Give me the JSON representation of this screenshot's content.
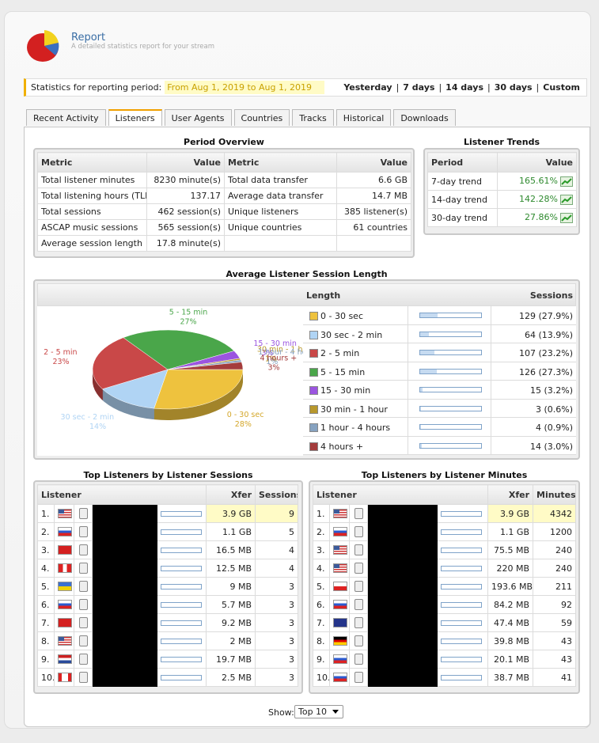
{
  "header": {
    "title": "Report",
    "subtitle": "A detailed statistics report for your stream"
  },
  "period_bar": {
    "label": "Statistics for reporting period:",
    "range": "From Aug 1, 2019 to Aug 1, 2019",
    "links": [
      "Yesterday",
      "7 days",
      "14 days",
      "30 days",
      "Custom"
    ],
    "separator": "|"
  },
  "tabs": [
    "Recent Activity",
    "Listeners",
    "User Agents",
    "Countries",
    "Tracks",
    "Historical",
    "Downloads"
  ],
  "active_tab": "Listeners",
  "period_overview": {
    "title": "Period Overview",
    "columns": [
      "Metric",
      "Value",
      "Metric",
      "Value"
    ],
    "rows": [
      [
        "Total listener minutes",
        "8230 minute(s)",
        "Total data transfer",
        "6.6 GB"
      ],
      [
        "Total listening hours (TLH)",
        "137.17",
        "Average data transfer",
        "14.7 MB"
      ],
      [
        "Total sessions",
        "462 session(s)",
        "Unique listeners",
        "385 listener(s)"
      ],
      [
        "ASCAP music sessions",
        "565 session(s)",
        "Unique countries",
        "61 countries"
      ],
      [
        "Average session length",
        "17.8 minute(s)"
      ]
    ]
  },
  "listener_trends": {
    "title": "Listener Trends",
    "columns": [
      "Period",
      "Value"
    ],
    "rows": [
      [
        "7-day trend",
        "165.61%"
      ],
      [
        "14-day trend",
        "142.28%"
      ],
      [
        "30-day trend",
        "27.86%"
      ]
    ]
  },
  "session_length": {
    "title": "Average Listener Session Length",
    "columns": [
      "Length",
      "Sessions"
    ],
    "type": "pie",
    "categories": [
      "0 - 30 sec",
      "30 sec - 2 min",
      "2 - 5 min",
      "5 - 15 min",
      "15 - 30 min",
      "30 min - 1 hour",
      "1 hour - 4 hours",
      "4 hours +"
    ],
    "colors": [
      "#eec23e",
      "#b0d4f4",
      "#c94848",
      "#4aa64a",
      "#9b55e0",
      "#b8982c",
      "#86a2c0",
      "#a43c3c"
    ],
    "values": [
      129,
      64,
      107,
      126,
      15,
      3,
      4,
      14
    ],
    "value_labels": [
      "129 (27.9%)",
      "64 (13.9%)",
      "107 (23.2%)",
      "126 (27.3%)",
      "15 (3.2%)",
      "3 (0.6%)",
      "4 (0.9%)",
      "14 (3.0%)"
    ],
    "slice_labels": [
      "28%",
      "14%",
      "23%",
      "27%",
      "3%",
      "1%",
      "1%",
      "3%"
    ]
  },
  "top_sessions": {
    "title": "Top Listeners by Listener Sessions",
    "columns": [
      "Listener",
      "Xfer",
      "Sessions"
    ],
    "rows": [
      {
        "rank": "1.",
        "xfer": "3.9 GB",
        "value": 9
      },
      {
        "rank": "2.",
        "xfer": "1.1 GB",
        "value": 5
      },
      {
        "rank": "3.",
        "xfer": "16.5 MB",
        "value": 4
      },
      {
        "rank": "4.",
        "xfer": "12.5 MB",
        "value": 4
      },
      {
        "rank": "5.",
        "xfer": "9 MB",
        "value": 3
      },
      {
        "rank": "6.",
        "xfer": "5.7 MB",
        "value": 3
      },
      {
        "rank": "7.",
        "xfer": "9.2 MB",
        "value": 3
      },
      {
        "rank": "8.",
        "xfer": "2 MB",
        "value": 3
      },
      {
        "rank": "9.",
        "xfer": "19.7 MB",
        "value": 3
      },
      {
        "rank": "10.",
        "xfer": "2.5 MB",
        "value": 3
      }
    ]
  },
  "top_minutes": {
    "title": "Top Listeners by Listener Minutes",
    "columns": [
      "Listener",
      "Xfer",
      "Minutes"
    ],
    "rows": [
      {
        "rank": "1.",
        "xfer": "3.9 GB",
        "value": 4342
      },
      {
        "rank": "2.",
        "xfer": "1.1 GB",
        "value": 1200
      },
      {
        "rank": "3.",
        "xfer": "75.5 MB",
        "value": 240
      },
      {
        "rank": "4.",
        "xfer": "220 MB",
        "value": 240
      },
      {
        "rank": "5.",
        "xfer": "193.6 MB",
        "value": 211
      },
      {
        "rank": "6.",
        "xfer": "84.2 MB",
        "value": 92
      },
      {
        "rank": "7.",
        "xfer": "47.4 MB",
        "value": 59
      },
      {
        "rank": "8.",
        "xfer": "39.8 MB",
        "value": 43
      },
      {
        "rank": "9.",
        "xfer": "20.1 MB",
        "value": 43
      },
      {
        "rank": "10.",
        "xfer": "38.7 MB",
        "value": 41
      }
    ]
  },
  "footer": {
    "label": "Show:",
    "select": "Top 10"
  }
}
